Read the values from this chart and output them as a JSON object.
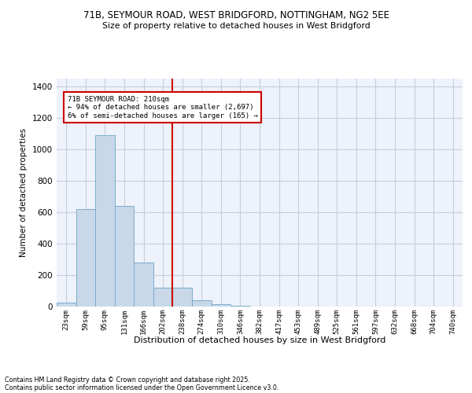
{
  "title_line1": "71B, SEYMOUR ROAD, WEST BRIDGFORD, NOTTINGHAM, NG2 5EE",
  "title_line2": "Size of property relative to detached houses in West Bridgford",
  "xlabel": "Distribution of detached houses by size in West Bridgford",
  "ylabel": "Number of detached properties",
  "footnote1": "Contains HM Land Registry data © Crown copyright and database right 2025.",
  "footnote2": "Contains public sector information licensed under the Open Government Licence v3.0.",
  "annotation_line1": "71B SEYMOUR ROAD: 210sqm",
  "annotation_line2": "← 94% of detached houses are smaller (2,697)",
  "annotation_line3": "6% of semi-detached houses are larger (165) →",
  "bin_labels": [
    "23sqm",
    "59sqm",
    "95sqm",
    "131sqm",
    "166sqm",
    "202sqm",
    "238sqm",
    "274sqm",
    "310sqm",
    "346sqm",
    "382sqm",
    "417sqm",
    "453sqm",
    "489sqm",
    "525sqm",
    "561sqm",
    "597sqm",
    "632sqm",
    "668sqm",
    "704sqm",
    "740sqm"
  ],
  "bar_heights": [
    25,
    620,
    1090,
    640,
    280,
    120,
    120,
    40,
    15,
    5,
    0,
    0,
    0,
    0,
    0,
    0,
    0,
    0,
    0,
    0,
    0
  ],
  "bar_color": "#c8d8e8",
  "bar_edgecolor": "#7aabcc",
  "vline_x": 5.5,
  "vline_color": "#cc0000",
  "ylim": [
    0,
    1450
  ],
  "yticks": [
    0,
    200,
    400,
    600,
    800,
    1000,
    1200,
    1400
  ],
  "bg_color": "#eef2fa",
  "grid_color": "#c8cce0",
  "annotation_box_color": "#cc0000"
}
